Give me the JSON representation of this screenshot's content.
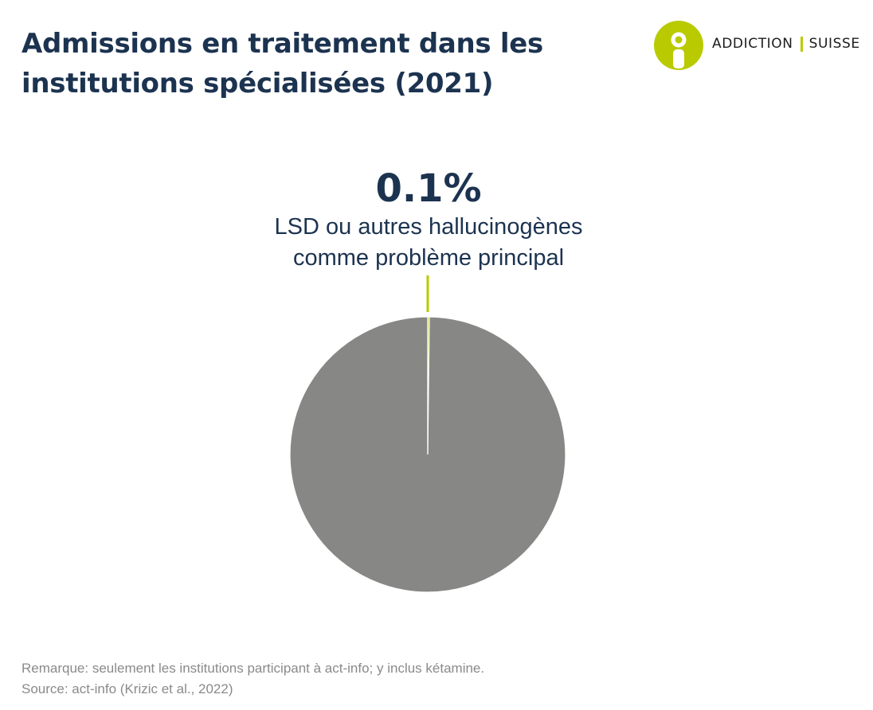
{
  "header": {
    "title": "Admissions en traitement dans les institutions spécialisées (2021)"
  },
  "logo": {
    "left_text": "ADDICTION",
    "right_text": "SUISSE",
    "accent_color": "#b9cb00"
  },
  "chart_data": {
    "type": "pie",
    "title": "Admissions en traitement dans les institutions spécialisées (2021)",
    "slices": [
      {
        "label": "LSD ou autres hallucinogènes comme problème principal",
        "value": 0.1,
        "color": "#b9cb00"
      },
      {
        "label": "",
        "value": 99.9,
        "color": "#878786"
      }
    ],
    "annotation": {
      "value_label": "0.1%",
      "text_line1": "LSD ou autres hallucinogènes",
      "text_line2": "comme problème principal"
    }
  },
  "footer": {
    "note": "Remarque: seulement les institutions participant à act-info; y inclus kétamine.",
    "source": "Source: act-info (Krizic et al., 2022)"
  },
  "colors": {
    "title": "#1c3350",
    "accent": "#b9cb00",
    "pie_rest": "#878786",
    "footnote": "#8a8a8a"
  }
}
